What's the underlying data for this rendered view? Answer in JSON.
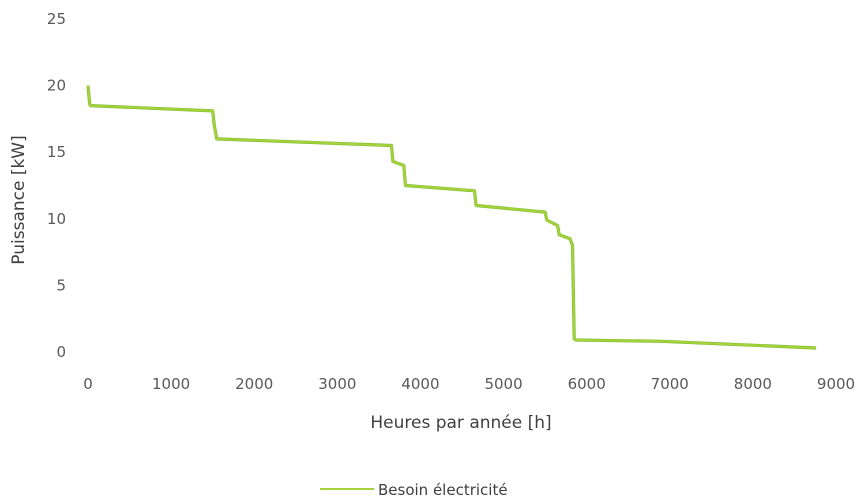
{
  "chart_data": {
    "type": "line",
    "title": "",
    "xlabel": "Heures par année [h]",
    "ylabel": "Puissance [kW]",
    "xlim": [
      0,
      9000
    ],
    "ylim": [
      0,
      25
    ],
    "x_ticks": [
      0,
      1000,
      2000,
      3000,
      4000,
      5000,
      6000,
      7000,
      8000,
      9000
    ],
    "y_ticks": [
      0,
      5,
      10,
      15,
      20,
      25
    ],
    "grid": false,
    "legend": "bottom",
    "series": [
      {
        "name": "Besoin électricité",
        "color": "#a6d23c",
        "x": [
          0,
          20,
          30,
          1500,
          1520,
          1550,
          3650,
          3670,
          3800,
          3820,
          4650,
          4670,
          5500,
          5520,
          5650,
          5670,
          5800,
          5830,
          5850,
          5870,
          6900,
          8760
        ],
        "y": [
          20.0,
          18.6,
          18.5,
          18.1,
          17.0,
          16.0,
          15.5,
          14.3,
          14.0,
          12.5,
          12.1,
          11.0,
          10.5,
          9.9,
          9.5,
          8.8,
          8.5,
          8.0,
          1.0,
          0.9,
          0.8,
          0.3
        ]
      }
    ]
  }
}
